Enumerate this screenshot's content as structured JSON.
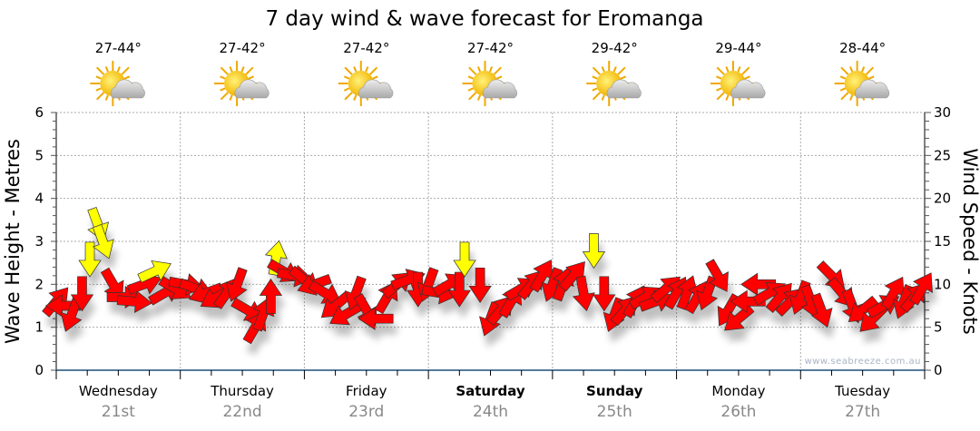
{
  "chart_data": {
    "type": "scatter",
    "title": "7 day wind & wave forecast for Eromanga",
    "ylabel": "Wave Height - Metres",
    "y2label": "Wind Speed - Knots",
    "ylim": [
      0,
      6
    ],
    "y2lim": [
      0,
      30
    ],
    "yticks": [
      "0",
      "1",
      "2",
      "3",
      "4",
      "5",
      "6"
    ],
    "y2ticks": [
      "0",
      "5",
      "10",
      "15",
      "20",
      "25",
      "30"
    ],
    "grid": true,
    "watermark": "www.seabreeze.com.au",
    "days": [
      {
        "name": "Wednesday",
        "date": "21st",
        "temp": "27-44°",
        "bold": false
      },
      {
        "name": "Thursday",
        "date": "22nd",
        "temp": "27-42°",
        "bold": false
      },
      {
        "name": "Friday",
        "date": "23rd",
        "temp": "27-42°",
        "bold": false
      },
      {
        "name": "Saturday",
        "date": "24th",
        "temp": "27-42°",
        "bold": true
      },
      {
        "name": "Sunday",
        "date": "25th",
        "temp": "29-42°",
        "bold": true
      },
      {
        "name": "Monday",
        "date": "26th",
        "temp": "29-44°",
        "bold": false
      },
      {
        "name": "Tuesday",
        "date": "27th",
        "temp": "28-44°",
        "bold": false
      }
    ],
    "weather_icon": "sun-cloud-icon",
    "colors": {
      "normal": "#ff0000",
      "highlight": "#ffff00",
      "axis": "#1f4e79"
    },
    "wind_series_note": "hour, knots, arrow direction (deg, 0=up), highlighted",
    "wind": [
      [
        0,
        8,
        40,
        0
      ],
      [
        1.5,
        7.5,
        270,
        0
      ],
      [
        3,
        6.5,
        200,
        0
      ],
      [
        5,
        9,
        180,
        0
      ],
      [
        6.5,
        13,
        180,
        1
      ],
      [
        8,
        17,
        160,
        1
      ],
      [
        9,
        15,
        160,
        1
      ],
      [
        11,
        10,
        150,
        0
      ],
      [
        13,
        8.5,
        90,
        0
      ],
      [
        15,
        8,
        95,
        0
      ],
      [
        17,
        10,
        70,
        0
      ],
      [
        19,
        11.5,
        65,
        1
      ],
      [
        21,
        9,
        60,
        0
      ],
      [
        23,
        9.5,
        120,
        0
      ],
      [
        25,
        10,
        100,
        0
      ],
      [
        27,
        9.5,
        110,
        0
      ],
      [
        29,
        9,
        250,
        0
      ],
      [
        31,
        8.5,
        240,
        0
      ],
      [
        33,
        9,
        35,
        0
      ],
      [
        35,
        10,
        200,
        0
      ],
      [
        37,
        7,
        120,
        0
      ],
      [
        38.5,
        5,
        30,
        0
      ],
      [
        40,
        6.5,
        20,
        0
      ],
      [
        41.5,
        8.5,
        0,
        0
      ],
      [
        42.5,
        13,
        10,
        1
      ],
      [
        44,
        11.5,
        120,
        0
      ],
      [
        46,
        11,
        100,
        0
      ],
      [
        48,
        10.5,
        130,
        0
      ],
      [
        50,
        10,
        250,
        0
      ],
      [
        52,
        9,
        120,
        0
      ],
      [
        54,
        7.5,
        230,
        0
      ],
      [
        56,
        6.5,
        240,
        0
      ],
      [
        58,
        9,
        200,
        0
      ],
      [
        60,
        7,
        150,
        0
      ],
      [
        62,
        6,
        270,
        0
      ],
      [
        64,
        8.5,
        30,
        0
      ],
      [
        66,
        10,
        50,
        0
      ],
      [
        68,
        10.5,
        70,
        0
      ],
      [
        70,
        9.5,
        180,
        0
      ],
      [
        72,
        10,
        200,
        0
      ],
      [
        74,
        9,
        100,
        0
      ],
      [
        76,
        10,
        60,
        0
      ],
      [
        78,
        9.5,
        180,
        0
      ],
      [
        79,
        13,
        180,
        1
      ],
      [
        82,
        10,
        180,
        0
      ],
      [
        84,
        6,
        200,
        0
      ],
      [
        86,
        7,
        40,
        0
      ],
      [
        88,
        8,
        30,
        0
      ],
      [
        90,
        9.5,
        60,
        0
      ],
      [
        92,
        10,
        40,
        0
      ],
      [
        94,
        11,
        30,
        0
      ],
      [
        96,
        10,
        200,
        0
      ],
      [
        98,
        10,
        20,
        0
      ],
      [
        100,
        11,
        40,
        0
      ],
      [
        102,
        9,
        170,
        0
      ],
      [
        104,
        14,
        180,
        1
      ],
      [
        106,
        9,
        180,
        0
      ],
      [
        108,
        6.5,
        200,
        0
      ],
      [
        110,
        7,
        40,
        0
      ],
      [
        112,
        8,
        30,
        0
      ],
      [
        114,
        8.5,
        60,
        0
      ],
      [
        116,
        8,
        70,
        0
      ],
      [
        118,
        9.5,
        50,
        0
      ],
      [
        120,
        9,
        30,
        0
      ],
      [
        122,
        9,
        20,
        0
      ],
      [
        124,
        8.5,
        30,
        0
      ],
      [
        126,
        9,
        200,
        0
      ],
      [
        128,
        11,
        150,
        0
      ],
      [
        130,
        7,
        210,
        0
      ],
      [
        132,
        6,
        230,
        0
      ],
      [
        134,
        8,
        270,
        0
      ],
      [
        136,
        10,
        270,
        0
      ],
      [
        138,
        9,
        60,
        0
      ],
      [
        140,
        8.5,
        40,
        0
      ],
      [
        142,
        8,
        45,
        0
      ],
      [
        144,
        8.5,
        200,
        0
      ],
      [
        146,
        8,
        160,
        0
      ],
      [
        148,
        7,
        160,
        0
      ],
      [
        150,
        11,
        135,
        0
      ],
      [
        152,
        9,
        140,
        0
      ],
      [
        154,
        7.5,
        160,
        0
      ],
      [
        156,
        7,
        230,
        0
      ],
      [
        158,
        6,
        225,
        0
      ],
      [
        160,
        7.5,
        60,
        0
      ],
      [
        162,
        9,
        30,
        0
      ],
      [
        164,
        8,
        200,
        0
      ],
      [
        166,
        8.5,
        40,
        0
      ],
      [
        167.5,
        9.5,
        30,
        0
      ]
    ]
  }
}
